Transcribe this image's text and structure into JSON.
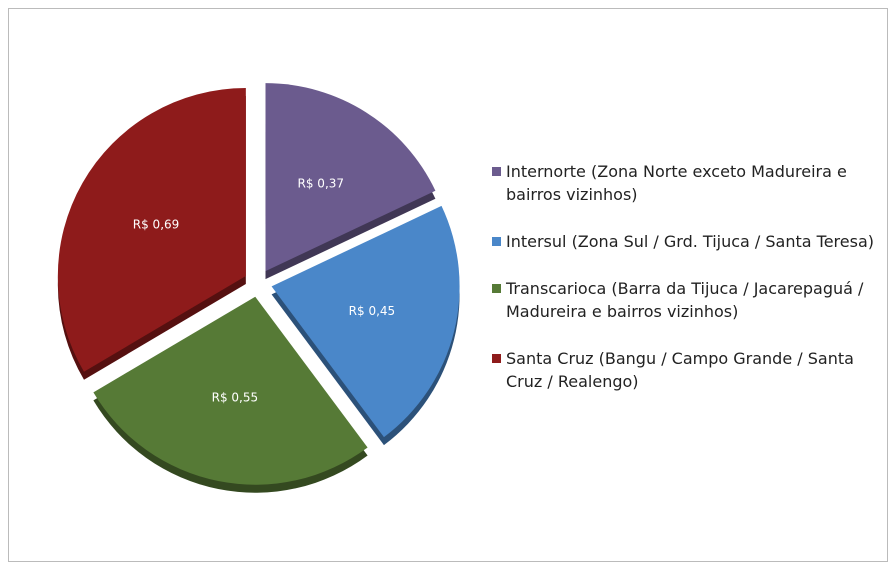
{
  "chart_data": {
    "type": "pie",
    "categories": [
      "Internorte (Zona Norte exceto Madureira e bairros vizinhos)",
      "Intersul (Zona Sul / Grd. Tijuca / Santa Teresa)",
      "Transcarioca (Barra da Tijuca / Jacarepaguá / Madureira e bairros vizinhos)",
      "Santa Cruz (Bangu / Campo Grande / Santa Cruz / Realengo)"
    ],
    "values": [
      0.37,
      0.45,
      0.55,
      0.69
    ],
    "value_labels": [
      "R$ 0,37",
      "R$ 0,45",
      "R$ 0,55",
      "R$ 0,69"
    ],
    "colors": [
      "#6b5b8e",
      "#4a87c9",
      "#567a36",
      "#8e1b1b"
    ],
    "legend": "right"
  }
}
